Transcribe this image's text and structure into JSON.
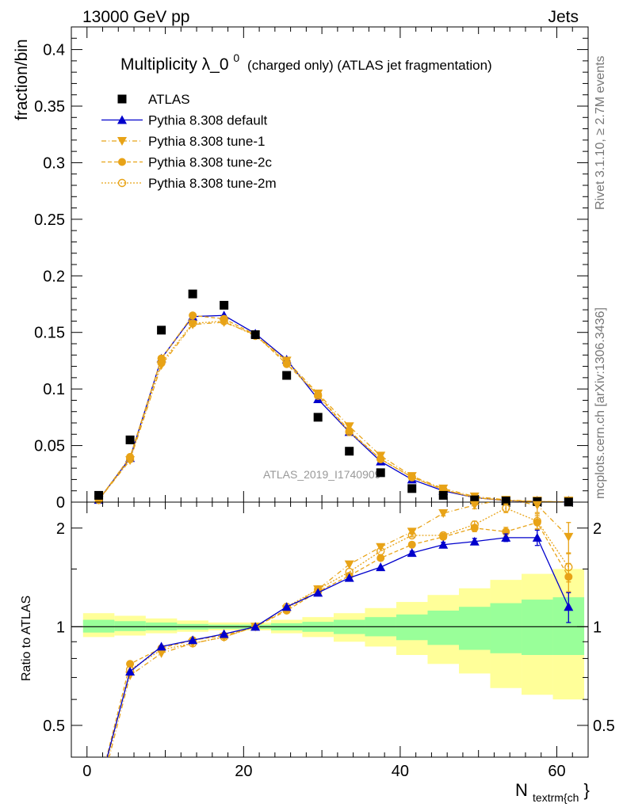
{
  "header": {
    "left": "13000 GeV pp",
    "right": "Jets"
  },
  "title": {
    "main": "Multiplicity λ_0",
    "superscript": "0",
    "suffix": "(charged only) (ATLAS jet fragmentation)"
  },
  "side_labels": {
    "rivet": "Rivet 3.1.10, ≥ 2.7M events",
    "mcplots": "mcplots.cern.ch [arXiv:1306.3436]"
  },
  "watermark": "ATLAS_2019_I1740909",
  "colors": {
    "atlas": "#000000",
    "default": "#0000cc",
    "tune": "#e8a317",
    "band_inner": "#99ff99",
    "band_outer": "#ffff99"
  },
  "chart_data": [
    {
      "type": "scatter",
      "panel": "main",
      "ylabel": "fraction/bin",
      "xlim": [
        -2,
        64
      ],
      "ylim": [
        0,
        0.42
      ],
      "y_ticks": [
        "0",
        "0.05",
        "0.1",
        "0.15",
        "0.2",
        "0.25",
        "0.3",
        "0.35",
        "0.4"
      ],
      "legend_position": "top-left",
      "x": [
        1.5,
        5.5,
        9.5,
        13.5,
        17.5,
        21.5,
        25.5,
        29.5,
        33.5,
        37.5,
        41.5,
        45.5,
        49.5,
        53.5,
        57.5,
        61.5
      ],
      "series": [
        {
          "name": "ATLAS",
          "marker": "square",
          "values": [
            0.006,
            0.055,
            0.152,
            0.184,
            0.174,
            0.148,
            0.112,
            0.075,
            0.045,
            0.026,
            0.012,
            0.006,
            0.002,
            0.001,
            0.0004,
            0.0001
          ]
        },
        {
          "name": "Pythia 8.308 default",
          "marker": "triangle-up",
          "line": "solid",
          "values": [
            0.002,
            0.039,
            0.127,
            0.164,
            0.165,
            0.149,
            0.126,
            0.091,
            0.062,
            0.036,
            0.02,
            0.01,
            0.004,
            0.0013,
            0.0004,
            0.0001
          ]
        },
        {
          "name": "Pythia 8.308 tune-1",
          "marker": "triangle-down",
          "line": "dashdot",
          "values": [
            0.002,
            0.037,
            0.121,
            0.157,
            0.159,
            0.148,
            0.125,
            0.096,
            0.067,
            0.041,
            0.023,
            0.012,
            0.005,
            0.002,
            0.0006,
            0.0002
          ]
        },
        {
          "name": "Pythia 8.308 tune-2c",
          "marker": "circle",
          "line": "dashed",
          "values": [
            0.002,
            0.04,
            0.127,
            0.165,
            0.162,
            0.148,
            0.122,
            0.095,
            0.063,
            0.038,
            0.022,
            0.011,
            0.004,
            0.0015,
            0.0005,
            0.0001
          ]
        },
        {
          "name": "Pythia 8.308 tune-2m",
          "marker": "circle-open",
          "line": "dotted",
          "values": [
            0.002,
            0.038,
            0.123,
            0.158,
            0.16,
            0.147,
            0.124,
            0.094,
            0.062,
            0.038,
            0.022,
            0.011,
            0.004,
            0.0014,
            0.0005,
            0.0001
          ]
        }
      ]
    },
    {
      "type": "line",
      "panel": "ratio",
      "ylabel": "Ratio to ATLAS",
      "xlabel": "N",
      "xlabel_subscript": "textrm{ch",
      "xlabel_suffix": "}",
      "xlim": [
        -2,
        64
      ],
      "ylim": [
        0.4,
        2.4
      ],
      "y_ticks": [
        "0.5",
        "1",
        "2"
      ],
      "x_ticks": [
        "0",
        "20",
        "40",
        "60"
      ],
      "x_tick_values": [
        0,
        20,
        40,
        60
      ],
      "reference": 1,
      "x": [
        1.5,
        5.5,
        9.5,
        13.5,
        17.5,
        21.5,
        25.5,
        29.5,
        33.5,
        37.5,
        41.5,
        45.5,
        49.5,
        53.5,
        57.5,
        61.5
      ],
      "bin_edges": [
        -0.5,
        3.5,
        7.5,
        11.5,
        15.5,
        19.5,
        23.5,
        27.5,
        31.5,
        35.5,
        39.5,
        43.5,
        47.5,
        51.5,
        55.5,
        59.5,
        63.5
      ],
      "band_inner": [
        [
          0.96,
          1.05
        ],
        [
          0.97,
          1.04
        ],
        [
          0.975,
          1.03
        ],
        [
          0.98,
          1.02
        ],
        [
          0.985,
          1.015
        ],
        [
          0.985,
          1.015
        ],
        [
          0.975,
          1.025
        ],
        [
          0.965,
          1.035
        ],
        [
          0.95,
          1.05
        ],
        [
          0.935,
          1.07
        ],
        [
          0.91,
          1.09
        ],
        [
          0.88,
          1.12
        ],
        [
          0.85,
          1.15
        ],
        [
          0.83,
          1.18
        ],
        [
          0.82,
          1.21
        ],
        [
          0.82,
          1.23
        ]
      ],
      "band_outer": [
        [
          0.93,
          1.1
        ],
        [
          0.94,
          1.08
        ],
        [
          0.955,
          1.06
        ],
        [
          0.965,
          1.045
        ],
        [
          0.975,
          1.03
        ],
        [
          0.975,
          1.03
        ],
        [
          0.955,
          1.05
        ],
        [
          0.93,
          1.07
        ],
        [
          0.9,
          1.1
        ],
        [
          0.87,
          1.14
        ],
        [
          0.82,
          1.19
        ],
        [
          0.77,
          1.25
        ],
        [
          0.72,
          1.31
        ],
        [
          0.65,
          1.39
        ],
        [
          0.62,
          1.45
        ],
        [
          0.6,
          1.5
        ]
      ],
      "series": [
        {
          "name": "Pythia 8.308 default",
          "values": [
            0.32,
            0.73,
            0.87,
            0.91,
            0.95,
            1.0,
            1.15,
            1.27,
            1.41,
            1.52,
            1.68,
            1.78,
            1.82,
            1.87,
            1.87,
            1.15
          ],
          "errors": [
            0,
            0,
            0,
            0,
            0,
            0,
            0,
            0,
            0,
            0,
            0.02,
            0.03,
            0.04,
            0.05,
            0.1,
            0.12
          ]
        },
        {
          "name": "Pythia 8.308 tune-1",
          "values": [
            0.3,
            0.71,
            0.83,
            0.89,
            0.93,
            1.0,
            1.13,
            1.3,
            1.55,
            1.75,
            1.95,
            2.22,
            2.35,
            2.45,
            2.35,
            1.88
          ],
          "errors": [
            0,
            0,
            0,
            0,
            0,
            0,
            0,
            0,
            0,
            0,
            0.02,
            0.04,
            0.06,
            0.08,
            0.12,
            0.2
          ]
        },
        {
          "name": "Pythia 8.308 tune-2c",
          "values": [
            0.32,
            0.77,
            0.86,
            0.91,
            0.94,
            1.0,
            1.12,
            1.28,
            1.43,
            1.62,
            1.78,
            1.88,
            2.0,
            1.95,
            2.08,
            1.42
          ],
          "errors": [
            0,
            0,
            0,
            0,
            0,
            0,
            0,
            0,
            0,
            0,
            0.02,
            0.03,
            0.05,
            0.06,
            0.1,
            0.14
          ]
        },
        {
          "name": "Pythia 8.308 tune-2m",
          "values": [
            0.31,
            0.74,
            0.85,
            0.89,
            0.93,
            1.0,
            1.15,
            1.3,
            1.47,
            1.7,
            1.9,
            1.9,
            2.05,
            2.3,
            2.1,
            1.52
          ],
          "errors": [
            0,
            0,
            0,
            0,
            0,
            0,
            0,
            0,
            0,
            0,
            0.02,
            0.03,
            0.05,
            0.07,
            0.11,
            0.15
          ]
        }
      ]
    }
  ]
}
